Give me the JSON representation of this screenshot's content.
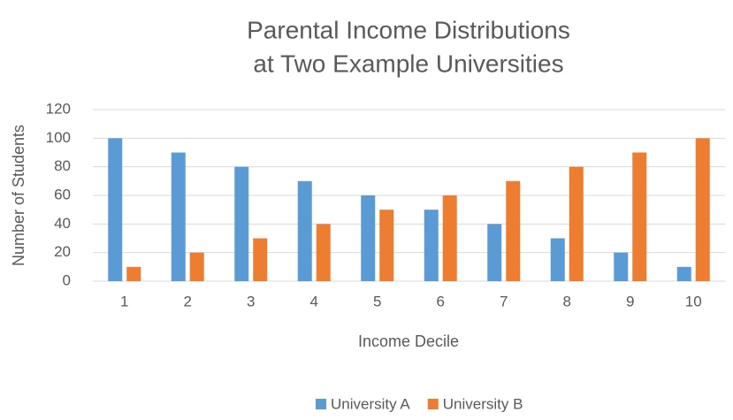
{
  "chart_data": {
    "type": "bar",
    "title": [
      "Parental Income Distributions",
      "at Two Example Universities"
    ],
    "x_label": "Income Decile",
    "y_label": "Number of Students",
    "categories": [
      "1",
      "2",
      "3",
      "4",
      "5",
      "6",
      "7",
      "8",
      "9",
      "10"
    ],
    "series": [
      {
        "name": "University A",
        "color": "#5b9bd5",
        "values": [
          100,
          90,
          80,
          70,
          60,
          50,
          40,
          30,
          20,
          10
        ]
      },
      {
        "name": "University B",
        "color": "#ed7d31",
        "values": [
          10,
          20,
          30,
          40,
          50,
          60,
          70,
          80,
          90,
          100
        ]
      }
    ],
    "ylim": [
      0,
      120
    ],
    "yticks": [
      0,
      20,
      40,
      60,
      80,
      100,
      120
    ],
    "grid": true,
    "legend": "bottom"
  }
}
